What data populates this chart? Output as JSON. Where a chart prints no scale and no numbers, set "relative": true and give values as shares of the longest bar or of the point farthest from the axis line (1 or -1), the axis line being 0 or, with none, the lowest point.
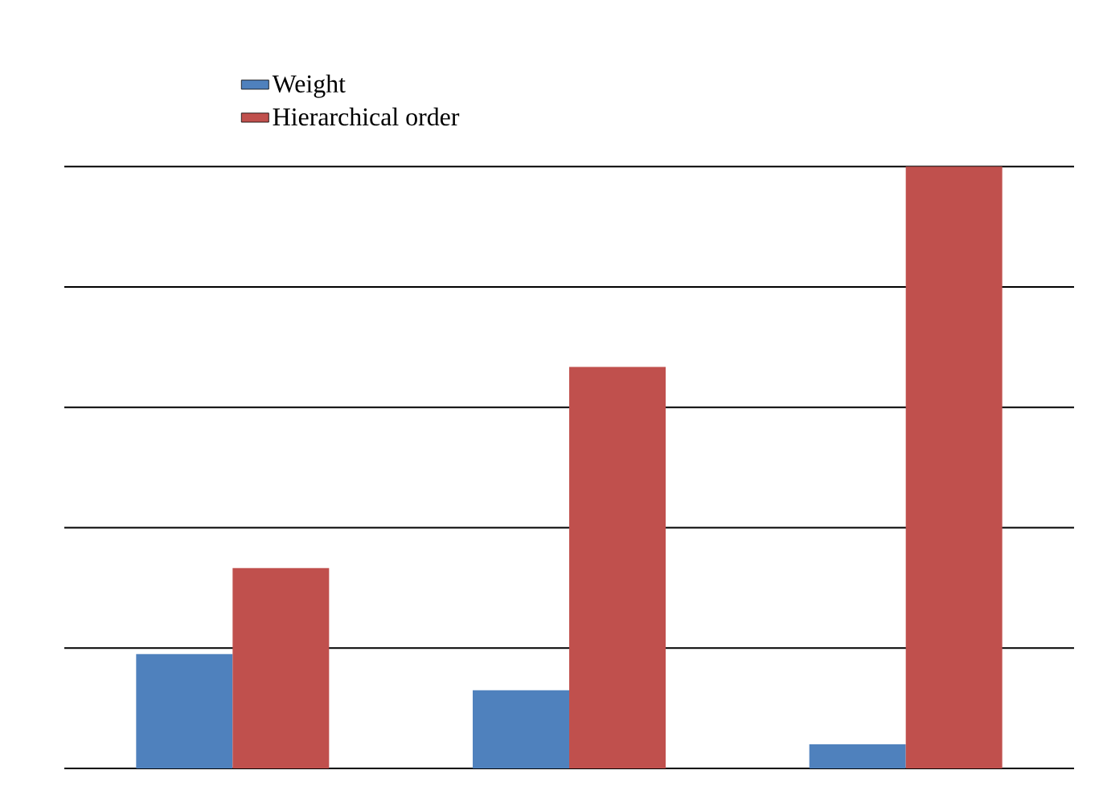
{
  "chart_data": {
    "type": "bar",
    "relative": true,
    "categories": [
      null,
      null,
      null
    ],
    "series": [
      {
        "name": "Weight",
        "color": "#4f81bd",
        "values": [
          0.19,
          0.13,
          0.04
        ]
      },
      {
        "name": "Hierarchical order",
        "color": "#c0504d",
        "values": [
          0.333,
          0.667,
          1
        ]
      }
    ],
    "grid": "y",
    "legend": "top left"
  }
}
